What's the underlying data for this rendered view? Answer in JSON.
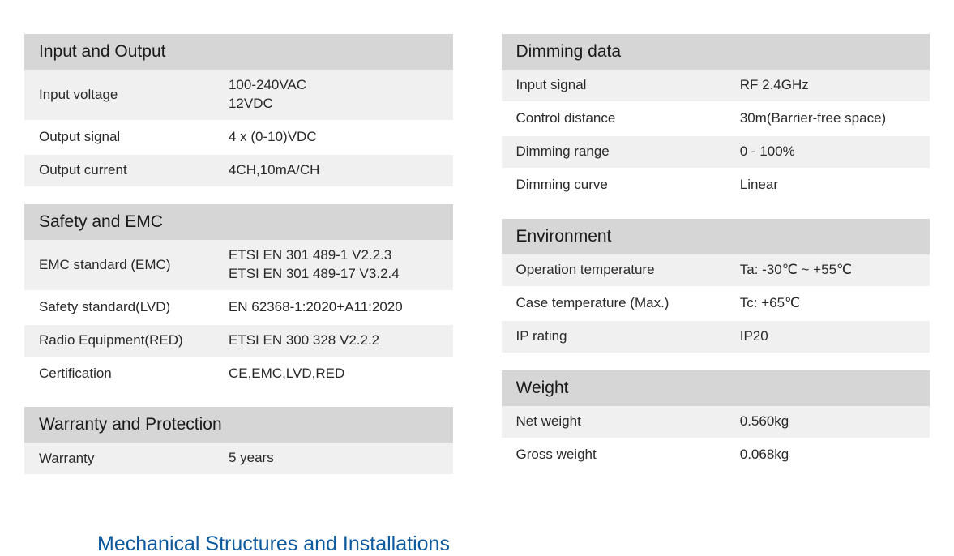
{
  "left": {
    "sections": [
      {
        "title": "Input and Output",
        "rows": [
          {
            "label": "Input voltage",
            "value": "100-240VAC\n12VDC",
            "alt": true
          },
          {
            "label": "Output signal",
            "value": "4 x (0-10)VDC",
            "alt": false
          },
          {
            "label": "Output current",
            "value": "4CH,10mA/CH",
            "alt": true
          }
        ]
      },
      {
        "title": "Safety and EMC",
        "rows": [
          {
            "label": "EMC standard (EMC)",
            "value": "ETSI EN 301 489-1 V2.2.3\nETSI EN 301 489-17 V3.2.4",
            "alt": true
          },
          {
            "label": "Safety standard(LVD)",
            "value": "EN 62368-1:2020+A11:2020",
            "alt": false
          },
          {
            "label": "Radio Equipment(RED)",
            "value": "ETSI EN 300 328 V2.2.2",
            "alt": true
          },
          {
            "label": "Certification",
            "value": "CE,EMC,LVD,RED",
            "alt": false
          }
        ]
      },
      {
        "title": "Warranty and Protection",
        "rows": [
          {
            "label": "Warranty",
            "value": "5 years",
            "alt": true
          }
        ]
      }
    ]
  },
  "right": {
    "sections": [
      {
        "title": "Dimming data",
        "rows": [
          {
            "label": "Input signal",
            "value": "RF 2.4GHz",
            "alt": true
          },
          {
            "label": "Control distance",
            "value": "30m(Barrier-free space)",
            "alt": false
          },
          {
            "label": "Dimming range",
            "value": "0 - 100%",
            "alt": true
          },
          {
            "label": "Dimming curve",
            "value": "Linear",
            "alt": false
          }
        ]
      },
      {
        "title": "Environment",
        "rows": [
          {
            "label": "Operation temperature",
            "value": "Ta: -30℃ ~ +55℃",
            "alt": true
          },
          {
            "label": "Case temperature (Max.)",
            "value": "Tc: +65℃",
            "alt": false
          },
          {
            "label": "IP rating",
            "value": "IP20",
            "alt": true
          }
        ]
      },
      {
        "title": "Weight",
        "rows": [
          {
            "label": "Net weight",
            "value": "0.560kg",
            "alt": true
          },
          {
            "label": "Gross weight",
            "value": "0.068kg",
            "alt": false
          }
        ]
      }
    ]
  },
  "footer_title": "Mechanical Structures and Installations"
}
